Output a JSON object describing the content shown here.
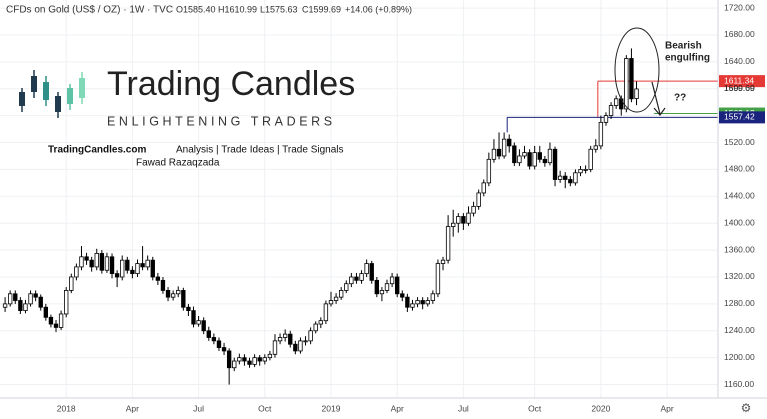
{
  "chart_data": {
    "type": "candlestick",
    "symbol": "CFDs on Gold (US$ / OZ) · 1W · TVC",
    "header_values": [
      "O1585.40",
      "H1610.99",
      "L1575.63",
      "C1599.69",
      "+14.06 (+0.89%)"
    ],
    "brand": {
      "title": "Trading Candles",
      "tagline": "ENLIGHTENING TRADERS",
      "site": "TradingCandles.com",
      "services": "Analysis | Trade Ideas | Trade Signals",
      "author": "Fawad Razaqzada"
    },
    "annotations": [
      "Bearish",
      "engulfing",
      "??"
    ],
    "bull_color": "#ffffff",
    "bear_color": "#000000",
    "grid": true,
    "ylim": [
      1140,
      1732
    ],
    "yticks": [
      {
        "value": 1160,
        "label": "1160.00"
      },
      {
        "value": 1200,
        "label": "1200.00"
      },
      {
        "value": 1240,
        "label": "1240.00"
      },
      {
        "value": 1280,
        "label": "1280.00"
      },
      {
        "value": 1320,
        "label": "1320.00"
      },
      {
        "value": 1360,
        "label": "1360.00"
      },
      {
        "value": 1400,
        "label": "1400.00"
      },
      {
        "value": 1440,
        "label": "1440.00"
      },
      {
        "value": 1480,
        "label": "1480.00"
      },
      {
        "value": 1520,
        "label": "1520.00"
      },
      {
        "value": 1560,
        "label": "1560.00"
      },
      {
        "value": 1600,
        "label": "1600.00"
      },
      {
        "value": 1640,
        "label": "1640.00"
      },
      {
        "value": 1680,
        "label": "1680.00"
      },
      {
        "value": 1720,
        "label": "1720.00"
      }
    ],
    "xlim": [
      -1,
      140
    ],
    "xticks": [
      {
        "value": 12,
        "label": "2018"
      },
      {
        "value": 25,
        "label": "Apr"
      },
      {
        "value": 38,
        "label": "Jul"
      },
      {
        "value": 51,
        "label": "Oct"
      },
      {
        "value": 64,
        "label": "2019"
      },
      {
        "value": 77,
        "label": "Apr"
      },
      {
        "value": 90,
        "label": "Jul"
      },
      {
        "value": 104,
        "label": "Oct"
      },
      {
        "value": 117,
        "label": "2020"
      },
      {
        "value": 130,
        "label": "Apr"
      }
    ],
    "hlines": [
      {
        "value": 1611.34,
        "color": "#e53935"
      },
      {
        "value": 1563.12,
        "color": "#43a047"
      },
      {
        "value": 1557.42,
        "color": "#1a237e"
      }
    ],
    "ohlc": [
      [
        1275,
        1290,
        1268,
        1280
      ],
      [
        1280,
        1300,
        1276,
        1295
      ],
      [
        1295,
        1300,
        1280,
        1285
      ],
      [
        1285,
        1290,
        1265,
        1270
      ],
      [
        1270,
        1286,
        1266,
        1280
      ],
      [
        1280,
        1300,
        1276,
        1295
      ],
      [
        1295,
        1300,
        1284,
        1290
      ],
      [
        1290,
        1294,
        1270,
        1275
      ],
      [
        1275,
        1280,
        1255,
        1260
      ],
      [
        1260,
        1264,
        1245,
        1250
      ],
      [
        1250,
        1256,
        1238,
        1245
      ],
      [
        1245,
        1270,
        1241,
        1265
      ],
      [
        1265,
        1305,
        1260,
        1300
      ],
      [
        1300,
        1325,
        1296,
        1320
      ],
      [
        1320,
        1340,
        1315,
        1335
      ],
      [
        1335,
        1366,
        1330,
        1350
      ],
      [
        1350,
        1356,
        1338,
        1345
      ],
      [
        1345,
        1350,
        1328,
        1335
      ],
      [
        1335,
        1362,
        1330,
        1355
      ],
      [
        1355,
        1360,
        1325,
        1330
      ],
      [
        1330,
        1356,
        1326,
        1350
      ],
      [
        1350,
        1355,
        1318,
        1325
      ],
      [
        1325,
        1330,
        1305,
        1320
      ],
      [
        1320,
        1352,
        1315,
        1345
      ],
      [
        1345,
        1350,
        1325,
        1330
      ],
      [
        1330,
        1336,
        1318,
        1325
      ],
      [
        1325,
        1346,
        1320,
        1340
      ],
      [
        1340,
        1366,
        1330,
        1335
      ],
      [
        1335,
        1352,
        1330,
        1345
      ],
      [
        1345,
        1350,
        1315,
        1320
      ],
      [
        1320,
        1326,
        1308,
        1315
      ],
      [
        1315,
        1320,
        1295,
        1300
      ],
      [
        1300,
        1305,
        1284,
        1290
      ],
      [
        1290,
        1300,
        1285,
        1295
      ],
      [
        1295,
        1306,
        1290,
        1300
      ],
      [
        1300,
        1304,
        1270,
        1275
      ],
      [
        1275,
        1280,
        1262,
        1270
      ],
      [
        1270,
        1276,
        1245,
        1250
      ],
      [
        1250,
        1262,
        1246,
        1255
      ],
      [
        1255,
        1260,
        1235,
        1240
      ],
      [
        1240,
        1246,
        1225,
        1230
      ],
      [
        1230,
        1236,
        1220,
        1225
      ],
      [
        1225,
        1230,
        1210,
        1215
      ],
      [
        1215,
        1222,
        1204,
        1210
      ],
      [
        1210,
        1214,
        1160,
        1185
      ],
      [
        1185,
        1200,
        1180,
        1195
      ],
      [
        1195,
        1206,
        1190,
        1200
      ],
      [
        1200,
        1205,
        1188,
        1195
      ],
      [
        1195,
        1200,
        1185,
        1190
      ],
      [
        1190,
        1205,
        1186,
        1200
      ],
      [
        1200,
        1204,
        1188,
        1195
      ],
      [
        1195,
        1205,
        1190,
        1200
      ],
      [
        1200,
        1210,
        1196,
        1205
      ],
      [
        1205,
        1235,
        1200,
        1225
      ],
      [
        1225,
        1236,
        1220,
        1230
      ],
      [
        1230,
        1242,
        1224,
        1235
      ],
      [
        1235,
        1240,
        1215,
        1220
      ],
      [
        1220,
        1225,
        1205,
        1210
      ],
      [
        1210,
        1230,
        1206,
        1225
      ],
      [
        1225,
        1232,
        1218,
        1225
      ],
      [
        1225,
        1245,
        1220,
        1240
      ],
      [
        1240,
        1254,
        1236,
        1250
      ],
      [
        1250,
        1260,
        1244,
        1255
      ],
      [
        1255,
        1285,
        1250,
        1280
      ],
      [
        1280,
        1298,
        1276,
        1285
      ],
      [
        1285,
        1296,
        1280,
        1290
      ],
      [
        1290,
        1305,
        1286,
        1300
      ],
      [
        1300,
        1315,
        1296,
        1310
      ],
      [
        1310,
        1326,
        1305,
        1320
      ],
      [
        1320,
        1326,
        1310,
        1315
      ],
      [
        1315,
        1330,
        1310,
        1325
      ],
      [
        1325,
        1346,
        1320,
        1340
      ],
      [
        1340,
        1344,
        1310,
        1315
      ],
      [
        1315,
        1320,
        1290,
        1295
      ],
      [
        1295,
        1305,
        1284,
        1300
      ],
      [
        1300,
        1316,
        1296,
        1310
      ],
      [
        1310,
        1326,
        1305,
        1320
      ],
      [
        1320,
        1325,
        1290,
        1295
      ],
      [
        1295,
        1300,
        1284,
        1290
      ],
      [
        1290,
        1295,
        1268,
        1275
      ],
      [
        1275,
        1286,
        1270,
        1280
      ],
      [
        1280,
        1290,
        1275,
        1285
      ],
      [
        1285,
        1290,
        1272,
        1280
      ],
      [
        1280,
        1290,
        1276,
        1285
      ],
      [
        1285,
        1300,
        1280,
        1295
      ],
      [
        1295,
        1346,
        1290,
        1340
      ],
      [
        1340,
        1350,
        1330,
        1345
      ],
      [
        1345,
        1412,
        1340,
        1395
      ],
      [
        1395,
        1420,
        1380,
        1400
      ],
      [
        1400,
        1415,
        1386,
        1410
      ],
      [
        1410,
        1415,
        1390,
        1400
      ],
      [
        1400,
        1425,
        1396,
        1415
      ],
      [
        1415,
        1432,
        1410,
        1425
      ],
      [
        1425,
        1450,
        1420,
        1445
      ],
      [
        1445,
        1465,
        1440,
        1460
      ],
      [
        1460,
        1505,
        1455,
        1495
      ],
      [
        1495,
        1525,
        1490,
        1510
      ],
      [
        1510,
        1535,
        1495,
        1500
      ],
      [
        1500,
        1535,
        1496,
        1525
      ],
      [
        1525,
        1532,
        1505,
        1515
      ],
      [
        1515,
        1520,
        1485,
        1490
      ],
      [
        1490,
        1510,
        1485,
        1500
      ],
      [
        1500,
        1515,
        1496,
        1505
      ],
      [
        1505,
        1510,
        1480,
        1485
      ],
      [
        1485,
        1515,
        1480,
        1505
      ],
      [
        1505,
        1515,
        1490,
        1495
      ],
      [
        1495,
        1500,
        1484,
        1490
      ],
      [
        1490,
        1520,
        1486,
        1510
      ],
      [
        1510,
        1514,
        1455,
        1465
      ],
      [
        1465,
        1478,
        1460,
        1470
      ],
      [
        1470,
        1476,
        1452,
        1465
      ],
      [
        1465,
        1470,
        1455,
        1460
      ],
      [
        1460,
        1480,
        1456,
        1475
      ],
      [
        1475,
        1485,
        1470,
        1480
      ],
      [
        1480,
        1486,
        1474,
        1480
      ],
      [
        1480,
        1515,
        1476,
        1510
      ],
      [
        1510,
        1525,
        1505,
        1515
      ],
      [
        1515,
        1560,
        1510,
        1550
      ],
      [
        1550,
        1565,
        1545,
        1560
      ],
      [
        1560,
        1580,
        1555,
        1575
      ],
      [
        1575,
        1590,
        1570,
        1585
      ],
      [
        1585,
        1590,
        1560,
        1570
      ],
      [
        1570,
        1650,
        1565,
        1645
      ],
      [
        1645,
        1660,
        1580,
        1585
      ],
      [
        1585.4,
        1610.99,
        1575.63,
        1599.69
      ]
    ]
  }
}
